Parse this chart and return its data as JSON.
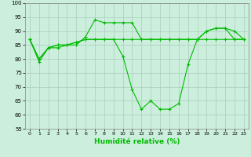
{
  "xlabel": "Humidité relative (%)",
  "background_color": "#cceedd",
  "grid_color": "#aaccbb",
  "line_color": "#00bb00",
  "xlim": [
    -0.5,
    23.5
  ],
  "ylim": [
    55,
    100
  ],
  "yticks": [
    55,
    60,
    65,
    70,
    75,
    80,
    85,
    90,
    95,
    100
  ],
  "xticks": [
    0,
    1,
    2,
    3,
    4,
    5,
    6,
    7,
    8,
    9,
    10,
    11,
    12,
    13,
    14,
    15,
    16,
    17,
    18,
    19,
    20,
    21,
    22,
    23
  ],
  "series": [
    {
      "x": [
        0,
        1,
        2,
        3,
        4,
        5,
        6,
        7,
        8,
        9,
        10,
        11,
        12,
        13,
        14,
        15,
        16,
        17,
        18,
        19,
        20,
        21,
        22,
        23
      ],
      "y": [
        87,
        79,
        84,
        84,
        85,
        85,
        88,
        94,
        93,
        93,
        93,
        93,
        87,
        87,
        87,
        87,
        87,
        87,
        87,
        87,
        87,
        87,
        87,
        87
      ]
    },
    {
      "x": [
        0,
        1,
        2,
        3,
        4,
        5,
        6,
        7,
        8,
        9,
        10,
        11,
        12,
        13,
        14,
        15,
        16,
        17,
        18,
        19,
        20,
        21,
        22,
        23
      ],
      "y": [
        87,
        80,
        84,
        85,
        85,
        86,
        87,
        87,
        87,
        87,
        87,
        87,
        87,
        87,
        87,
        87,
        87,
        87,
        87,
        90,
        91,
        91,
        87,
        87
      ]
    },
    {
      "x": [
        0,
        1,
        2,
        3,
        4,
        5,
        6,
        7,
        8,
        9,
        10,
        11,
        12,
        13,
        14,
        15,
        16,
        17,
        18,
        19,
        20,
        21,
        22,
        23
      ],
      "y": [
        87,
        80,
        84,
        85,
        85,
        86,
        87,
        87,
        87,
        87,
        81,
        69,
        62,
        65,
        62,
        62,
        64,
        78,
        87,
        90,
        91,
        91,
        90,
        87
      ]
    }
  ]
}
